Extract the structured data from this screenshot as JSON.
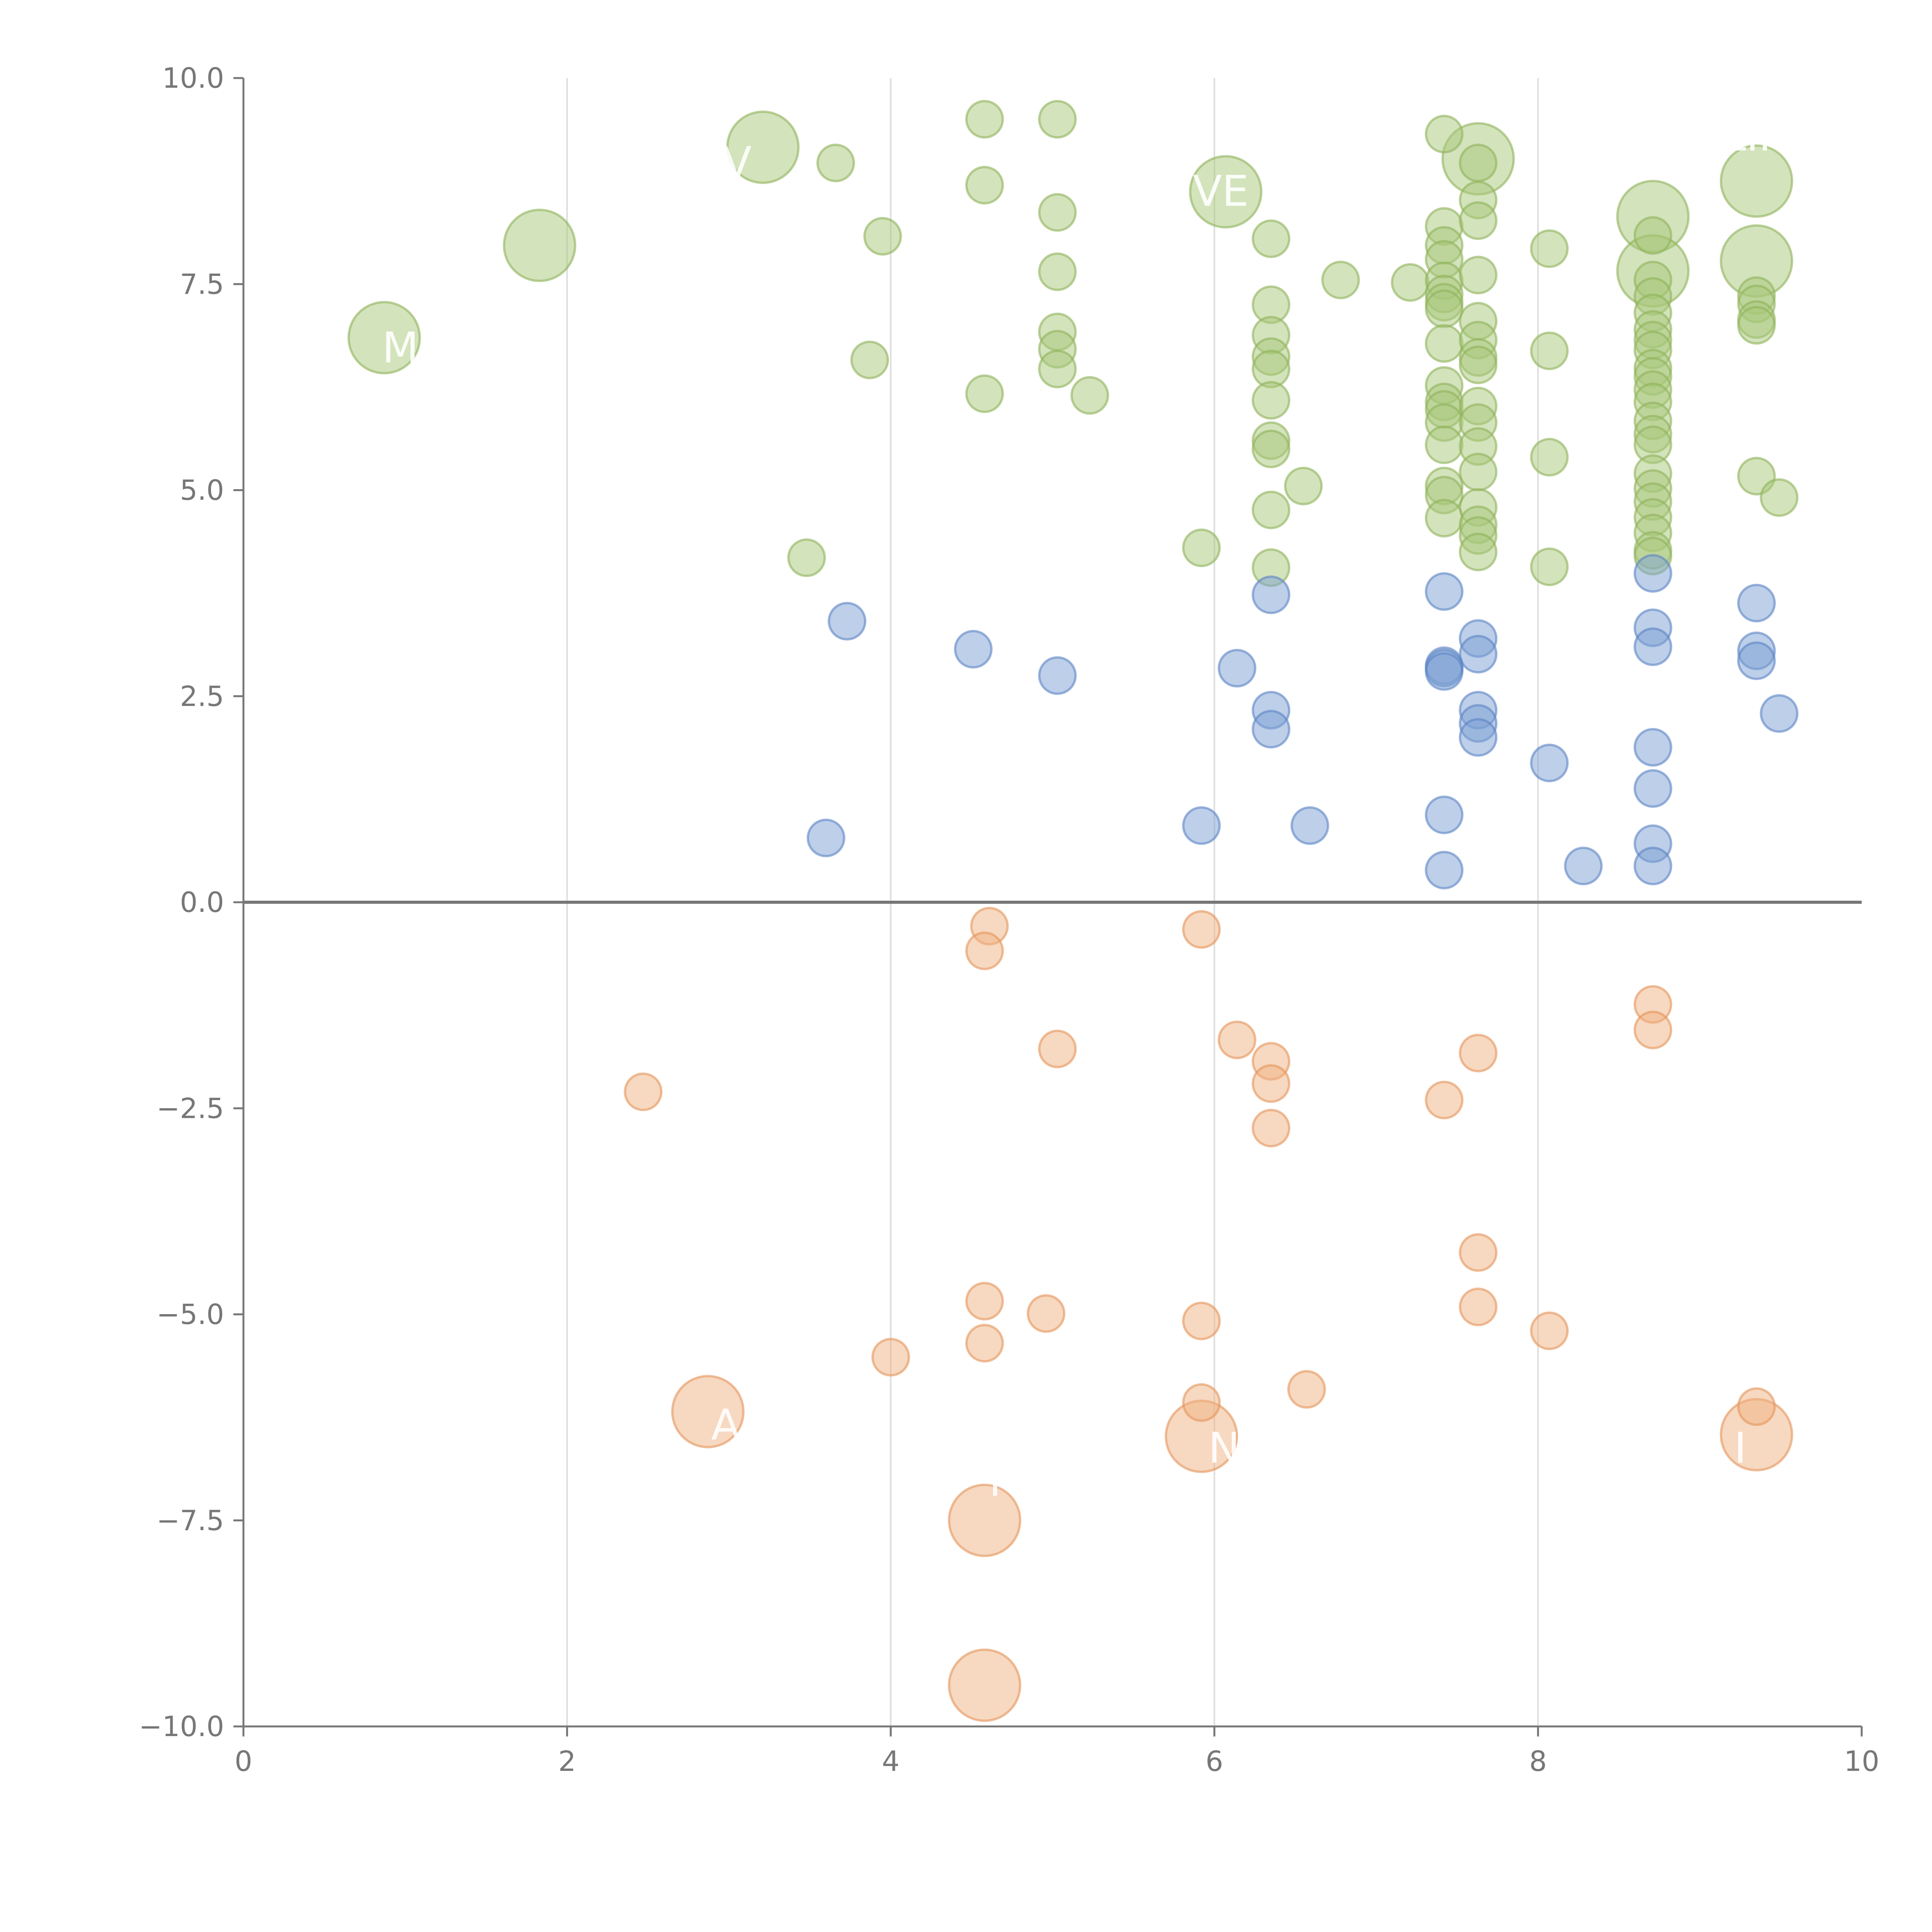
{
  "chart_data": {
    "type": "scatter",
    "title": "",
    "xlabel": "",
    "ylabel": "",
    "xlim": [
      0,
      10
    ],
    "ylim": [
      -10,
      10
    ],
    "x_ticks": [
      0,
      2,
      4,
      6,
      8,
      10
    ],
    "y_ticks": [
      -10.0,
      -7.5,
      -5.0,
      -2.5,
      0.0,
      2.5,
      5.0,
      7.5,
      10.0
    ],
    "x_tick_labels": [
      "0",
      "2",
      "4",
      "6",
      "8",
      "10"
    ],
    "y_tick_labels": [
      "−10.0",
      "−7.5",
      "−5.0",
      "−2.5",
      "0.0",
      "2.5",
      "5.0",
      "7.5",
      "10.0"
    ],
    "vertical_grid": true,
    "zero_line": 0,
    "series": [
      {
        "name": "high",
        "color": "#a8c77a",
        "stroke": "#8fb35a",
        "points": [
          {
            "x": 0.87,
            "y": 6.85,
            "size": "large"
          },
          {
            "x": 1.83,
            "y": 7.97,
            "size": "large"
          },
          {
            "x": 3.21,
            "y": 9.16,
            "size": "large"
          },
          {
            "x": 6.07,
            "y": 8.62,
            "size": "large"
          },
          {
            "x": 7.63,
            "y": 9.02,
            "size": "large"
          },
          {
            "x": 8.71,
            "y": 8.32,
            "size": "large"
          },
          {
            "x": 8.71,
            "y": 7.66,
            "size": "large"
          },
          {
            "x": 9.35,
            "y": 8.75,
            "size": "large"
          },
          {
            "x": 9.35,
            "y": 7.78,
            "size": "large"
          },
          {
            "x": 3.66,
            "y": 8.97
          },
          {
            "x": 3.95,
            "y": 8.08
          },
          {
            "x": 3.87,
            "y": 6.58
          },
          {
            "x": 3.48,
            "y": 4.18
          },
          {
            "x": 4.58,
            "y": 9.5
          },
          {
            "x": 4.58,
            "y": 8.7
          },
          {
            "x": 4.58,
            "y": 6.17
          },
          {
            "x": 5.03,
            "y": 9.5
          },
          {
            "x": 5.03,
            "y": 8.37
          },
          {
            "x": 5.03,
            "y": 7.65
          },
          {
            "x": 5.03,
            "y": 6.92
          },
          {
            "x": 5.03,
            "y": 6.71
          },
          {
            "x": 5.03,
            "y": 6.47
          },
          {
            "x": 5.23,
            "y": 6.15
          },
          {
            "x": 5.92,
            "y": 4.3
          },
          {
            "x": 6.35,
            "y": 8.05
          },
          {
            "x": 6.35,
            "y": 7.25
          },
          {
            "x": 6.35,
            "y": 6.88
          },
          {
            "x": 6.35,
            "y": 6.62
          },
          {
            "x": 6.35,
            "y": 6.47
          },
          {
            "x": 6.35,
            "y": 6.09
          },
          {
            "x": 6.35,
            "y": 5.6
          },
          {
            "x": 6.35,
            "y": 5.5
          },
          {
            "x": 6.35,
            "y": 4.76
          },
          {
            "x": 6.35,
            "y": 4.06
          },
          {
            "x": 6.55,
            "y": 5.05
          },
          {
            "x": 6.78,
            "y": 7.55
          },
          {
            "x": 7.21,
            "y": 7.52
          },
          {
            "x": 7.42,
            "y": 9.32
          },
          {
            "x": 7.42,
            "y": 8.2
          },
          {
            "x": 7.42,
            "y": 7.97
          },
          {
            "x": 7.42,
            "y": 7.8
          },
          {
            "x": 7.42,
            "y": 7.54
          },
          {
            "x": 7.42,
            "y": 7.38
          },
          {
            "x": 7.42,
            "y": 7.28
          },
          {
            "x": 7.42,
            "y": 7.2
          },
          {
            "x": 7.42,
            "y": 6.78
          },
          {
            "x": 7.42,
            "y": 6.27
          },
          {
            "x": 7.42,
            "y": 6.07
          },
          {
            "x": 7.42,
            "y": 5.98
          },
          {
            "x": 7.42,
            "y": 5.82
          },
          {
            "x": 7.42,
            "y": 5.55
          },
          {
            "x": 7.42,
            "y": 5.05
          },
          {
            "x": 7.42,
            "y": 4.94
          },
          {
            "x": 7.42,
            "y": 4.66
          },
          {
            "x": 7.63,
            "y": 8.97
          },
          {
            "x": 7.63,
            "y": 8.52
          },
          {
            "x": 7.63,
            "y": 8.27
          },
          {
            "x": 7.63,
            "y": 7.61
          },
          {
            "x": 7.63,
            "y": 7.05
          },
          {
            "x": 7.63,
            "y": 6.82
          },
          {
            "x": 7.63,
            "y": 6.61
          },
          {
            "x": 7.63,
            "y": 6.52
          },
          {
            "x": 7.63,
            "y": 6.02
          },
          {
            "x": 7.63,
            "y": 5.82
          },
          {
            "x": 7.63,
            "y": 5.53
          },
          {
            "x": 7.63,
            "y": 5.22
          },
          {
            "x": 7.63,
            "y": 4.79
          },
          {
            "x": 7.63,
            "y": 4.58
          },
          {
            "x": 7.63,
            "y": 4.45
          },
          {
            "x": 7.63,
            "y": 4.25
          },
          {
            "x": 8.07,
            "y": 7.93
          },
          {
            "x": 8.07,
            "y": 6.69
          },
          {
            "x": 8.07,
            "y": 5.4
          },
          {
            "x": 8.07,
            "y": 4.07
          },
          {
            "x": 8.71,
            "y": 8.09
          },
          {
            "x": 8.71,
            "y": 7.55
          },
          {
            "x": 8.71,
            "y": 7.35
          },
          {
            "x": 8.71,
            "y": 7.15
          },
          {
            "x": 8.71,
            "y": 6.95
          },
          {
            "x": 8.71,
            "y": 6.82
          },
          {
            "x": 8.71,
            "y": 6.7
          },
          {
            "x": 8.71,
            "y": 6.48
          },
          {
            "x": 8.71,
            "y": 6.38
          },
          {
            "x": 8.71,
            "y": 6.22
          },
          {
            "x": 8.71,
            "y": 6.07
          },
          {
            "x": 8.71,
            "y": 5.84
          },
          {
            "x": 8.71,
            "y": 5.68
          },
          {
            "x": 8.71,
            "y": 5.55
          },
          {
            "x": 8.71,
            "y": 5.2
          },
          {
            "x": 8.71,
            "y": 5.02
          },
          {
            "x": 8.71,
            "y": 4.86
          },
          {
            "x": 8.71,
            "y": 4.67
          },
          {
            "x": 8.71,
            "y": 4.48
          },
          {
            "x": 8.71,
            "y": 4.27
          },
          {
            "x": 8.71,
            "y": 4.2
          },
          {
            "x": 9.35,
            "y": 7.36
          },
          {
            "x": 9.35,
            "y": 7.26
          },
          {
            "x": 9.35,
            "y": 7.07
          },
          {
            "x": 9.35,
            "y": 7.0
          },
          {
            "x": 9.35,
            "y": 5.17
          },
          {
            "x": 9.49,
            "y": 4.91
          }
        ]
      },
      {
        "name": "mid",
        "color": "#7c9fd4",
        "stroke": "#5b84c4",
        "points": [
          {
            "x": 3.73,
            "y": 3.41
          },
          {
            "x": 3.6,
            "y": 0.78
          },
          {
            "x": 4.51,
            "y": 3.07
          },
          {
            "x": 5.03,
            "y": 2.75
          },
          {
            "x": 5.92,
            "y": 0.93
          },
          {
            "x": 6.14,
            "y": 2.84
          },
          {
            "x": 6.35,
            "y": 3.73
          },
          {
            "x": 6.35,
            "y": 2.33
          },
          {
            "x": 6.35,
            "y": 2.1
          },
          {
            "x": 6.59,
            "y": 0.93
          },
          {
            "x": 7.42,
            "y": 3.77
          },
          {
            "x": 7.42,
            "y": 2.87
          },
          {
            "x": 7.42,
            "y": 2.84
          },
          {
            "x": 7.42,
            "y": 2.8
          },
          {
            "x": 7.42,
            "y": 1.06
          },
          {
            "x": 7.42,
            "y": 0.39
          },
          {
            "x": 7.63,
            "y": 3.2
          },
          {
            "x": 7.63,
            "y": 3.01
          },
          {
            "x": 7.63,
            "y": 2.33
          },
          {
            "x": 7.63,
            "y": 2.17
          },
          {
            "x": 7.63,
            "y": 2.0
          },
          {
            "x": 8.07,
            "y": 1.69
          },
          {
            "x": 8.28,
            "y": 0.44
          },
          {
            "x": 8.71,
            "y": 3.99
          },
          {
            "x": 8.71,
            "y": 3.33
          },
          {
            "x": 8.71,
            "y": 3.1
          },
          {
            "x": 8.71,
            "y": 1.88
          },
          {
            "x": 8.71,
            "y": 1.38
          },
          {
            "x": 8.71,
            "y": 0.71
          },
          {
            "x": 8.71,
            "y": 0.44
          },
          {
            "x": 9.35,
            "y": 3.63
          },
          {
            "x": 9.35,
            "y": 3.05
          },
          {
            "x": 9.35,
            "y": 2.93
          },
          {
            "x": 9.49,
            "y": 2.29
          }
        ]
      },
      {
        "name": "low",
        "color": "#f0b281",
        "stroke": "#e5955a",
        "points": [
          {
            "x": 2.87,
            "y": -6.18,
            "size": "large"
          },
          {
            "x": 4.58,
            "y": -7.5,
            "size": "large"
          },
          {
            "x": 4.58,
            "y": -9.5,
            "size": "large"
          },
          {
            "x": 5.92,
            "y": -6.48,
            "size": "large"
          },
          {
            "x": 9.35,
            "y": -6.46,
            "size": "large"
          },
          {
            "x": 2.47,
            "y": -2.3
          },
          {
            "x": 4.0,
            "y": -5.52
          },
          {
            "x": 4.61,
            "y": -0.29
          },
          {
            "x": 4.58,
            "y": -0.59
          },
          {
            "x": 4.58,
            "y": -4.84
          },
          {
            "x": 4.58,
            "y": -5.35
          },
          {
            "x": 4.96,
            "y": -4.99
          },
          {
            "x": 5.03,
            "y": -1.78
          },
          {
            "x": 5.92,
            "y": -0.33
          },
          {
            "x": 5.92,
            "y": -5.08
          },
          {
            "x": 5.92,
            "y": -6.07
          },
          {
            "x": 6.14,
            "y": -1.67
          },
          {
            "x": 6.35,
            "y": -1.93
          },
          {
            "x": 6.35,
            "y": -2.2
          },
          {
            "x": 6.35,
            "y": -2.74
          },
          {
            "x": 6.57,
            "y": -5.91
          },
          {
            "x": 7.42,
            "y": -2.4
          },
          {
            "x": 7.63,
            "y": -1.83
          },
          {
            "x": 7.63,
            "y": -4.25
          },
          {
            "x": 7.63,
            "y": -4.91
          },
          {
            "x": 8.07,
            "y": -5.2
          },
          {
            "x": 8.71,
            "y": -1.24
          },
          {
            "x": 8.71,
            "y": -1.55
          },
          {
            "x": 9.35,
            "y": -6.12
          }
        ]
      }
    ],
    "annotations": [
      {
        "text": "M",
        "x": 0.97,
        "y": 6.55
      },
      {
        "text": "“",
        "x": 1.78,
        "y": 8.3
      },
      {
        "text": "V",
        "x": 3.05,
        "y": 8.8
      },
      {
        "text": "VE",
        "x": 6.04,
        "y": 8.45
      },
      {
        "text": "LIN",
        "x": 9.35,
        "y": 9.12
      },
      {
        "text": "A",
        "x": 2.98,
        "y": -6.52
      },
      {
        "text": "M",
        "x": 4.72,
        "y": -7.2
      },
      {
        "text": "‘",
        "x": 4.72,
        "y": -9.05
      },
      {
        "text": "N",
        "x": 6.06,
        "y": -6.8
      },
      {
        "text": "I",
        "x": 9.25,
        "y": -6.8
      }
    ]
  }
}
